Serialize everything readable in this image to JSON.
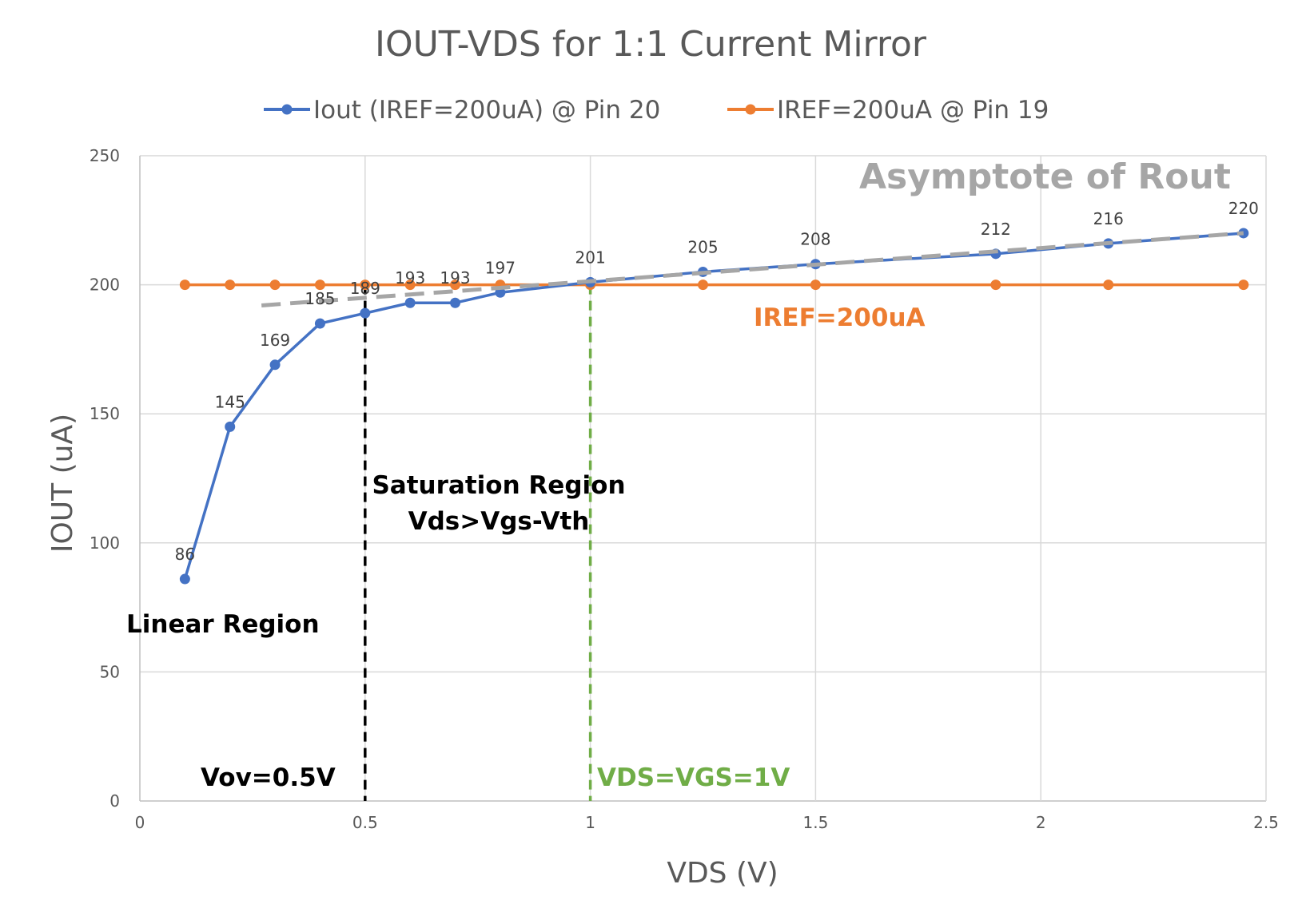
{
  "chart_data": {
    "type": "line",
    "title": "IOUT-VDS for 1:1 Current Mirror",
    "xlabel": "VDS (V)",
    "ylabel": "IOUT (uA)",
    "xlim": [
      0,
      2.5
    ],
    "ylim": [
      0,
      250
    ],
    "x_ticks": [
      "0",
      "0.5",
      "1",
      "1.5",
      "2",
      "2.5"
    ],
    "y_ticks": [
      "0",
      "50",
      "100",
      "150",
      "200",
      "250"
    ],
    "grid": true,
    "legend_position": "top",
    "series": [
      {
        "name": "Iout (IREF=200uA) @ Pin 20",
        "color": "#4472C4",
        "x": [
          0.1,
          0.2,
          0.3,
          0.4,
          0.5,
          0.6,
          0.7,
          0.8,
          1.0,
          1.25,
          1.5,
          1.9,
          2.15,
          2.45
        ],
        "y": [
          86,
          145,
          169,
          185,
          189,
          193,
          193,
          197,
          201,
          205,
          208,
          212,
          216,
          220
        ],
        "data_labels": [
          "86",
          "145",
          "169",
          "185",
          "189",
          "193",
          "193",
          "197",
          "201",
          "205",
          "208",
          "212",
          "216",
          "220"
        ]
      },
      {
        "name": "IREF=200uA @ Pin 19",
        "color": "#ED7D31",
        "x": [
          0.1,
          0.2,
          0.3,
          0.4,
          0.5,
          0.6,
          0.7,
          0.8,
          1.0,
          1.25,
          1.5,
          1.9,
          2.15,
          2.45
        ],
        "y": [
          200,
          200,
          200,
          200,
          200,
          200,
          200,
          200,
          200,
          200,
          200,
          200,
          200,
          200
        ]
      }
    ],
    "asymptote": {
      "color": "#A6A6A6",
      "x": [
        0.27,
        2.45
      ],
      "y": [
        192,
        220
      ]
    },
    "vlines": [
      {
        "x": 0.5,
        "color": "#000000"
      },
      {
        "x": 1.0,
        "color": "#70AD47"
      }
    ],
    "annotations": [
      {
        "key": "asymptote",
        "text": "Asymptote of Rout",
        "color": "#A6A6A6"
      },
      {
        "key": "iref",
        "text": "IREF=200uA",
        "color": "#ED7D31"
      },
      {
        "key": "sat1",
        "text": "Saturation Region",
        "color": "#000000"
      },
      {
        "key": "sat2",
        "text": "Vds>Vgs-Vth",
        "color": "#000000"
      },
      {
        "key": "linear",
        "text": "Linear Region",
        "color": "#000000"
      },
      {
        "key": "vov",
        "text": "Vov=0.5V",
        "color": "#000000"
      },
      {
        "key": "vdsvgs",
        "text": "VDS=VGS=1V",
        "color": "#70AD47"
      }
    ]
  }
}
